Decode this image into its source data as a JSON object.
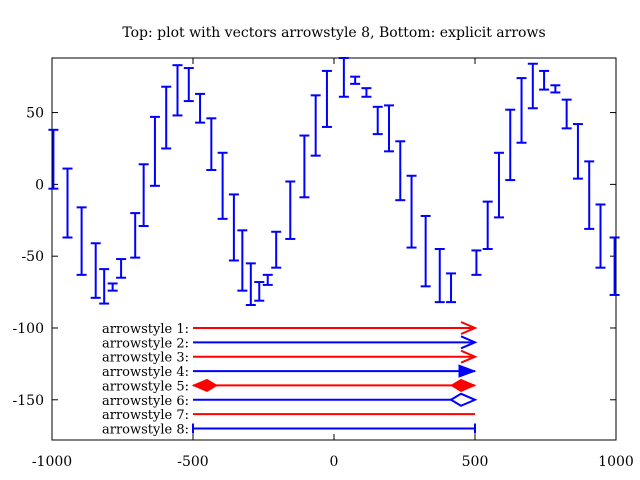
{
  "chart_data": {
    "type": "vector",
    "title": "Top: plot with vectors arrowstyle 8, Bottom: explicit arrows",
    "xlabel": "",
    "ylabel": "",
    "xlim": [
      -1000,
      1000
    ],
    "ylim": [
      -178,
      88
    ],
    "grid": false,
    "xticks": [
      -1000,
      -500,
      0,
      500,
      1000
    ],
    "yticks": [
      50,
      0,
      -50,
      -100,
      -150
    ],
    "xtick_labels": [
      "-1000",
      "-500",
      "0",
      "500",
      "1000"
    ],
    "ytick_labels": [
      "50",
      "0",
      "-50",
      "-100",
      "-150"
    ],
    "vectors": [
      {
        "x": -995,
        "y1": -3,
        "y2": 38
      },
      {
        "x": -945,
        "y1": -37,
        "y2": 11
      },
      {
        "x": -895,
        "y1": -63,
        "y2": -16
      },
      {
        "x": -845,
        "y1": -79,
        "y2": -41
      },
      {
        "x": -815,
        "y1": -83,
        "y2": -59
      },
      {
        "x": -785,
        "y1": -74,
        "y2": -69
      },
      {
        "x": -755,
        "y1": -65,
        "y2": -52
      },
      {
        "x": -705,
        "y1": -51,
        "y2": -20
      },
      {
        "x": -675,
        "y1": -29,
        "y2": 14
      },
      {
        "x": -635,
        "y1": -1,
        "y2": 47
      },
      {
        "x": -595,
        "y1": 25,
        "y2": 68
      },
      {
        "x": -555,
        "y1": 48,
        "y2": 83
      },
      {
        "x": -515,
        "y1": 58,
        "y2": 81
      },
      {
        "x": -475,
        "y1": 43,
        "y2": 63
      },
      {
        "x": -435,
        "y1": 10,
        "y2": 46
      },
      {
        "x": -395,
        "y1": -24,
        "y2": 22
      },
      {
        "x": -355,
        "y1": -53,
        "y2": -7
      },
      {
        "x": -325,
        "y1": -74,
        "y2": -32
      },
      {
        "x": -295,
        "y1": -84,
        "y2": -55
      },
      {
        "x": -265,
        "y1": -81,
        "y2": -68
      },
      {
        "x": -235,
        "y1": -70,
        "y2": -63
      },
      {
        "x": -205,
        "y1": -58,
        "y2": -33
      },
      {
        "x": -155,
        "y1": -38,
        "y2": 2
      },
      {
        "x": -105,
        "y1": -9,
        "y2": 34
      },
      {
        "x": -65,
        "y1": 20,
        "y2": 62
      },
      {
        "x": -25,
        "y1": 40,
        "y2": 79
      },
      {
        "x": 35,
        "y1": 61,
        "y2": 88
      },
      {
        "x": 75,
        "y1": 70,
        "y2": 75
      },
      {
        "x": 115,
        "y1": 61,
        "y2": 67
      },
      {
        "x": 155,
        "y1": 35,
        "y2": 54
      },
      {
        "x": 195,
        "y1": 23,
        "y2": 55
      },
      {
        "x": 235,
        "y1": -11,
        "y2": 30
      },
      {
        "x": 275,
        "y1": -44,
        "y2": 6
      },
      {
        "x": 325,
        "y1": -71,
        "y2": -22
      },
      {
        "x": 375,
        "y1": -82,
        "y2": -45
      },
      {
        "x": 415,
        "y1": -82,
        "y2": -62
      },
      {
        "x": 505,
        "y1": -63,
        "y2": -46
      },
      {
        "x": 545,
        "y1": -45,
        "y2": -12
      },
      {
        "x": 585,
        "y1": -23,
        "y2": 22
      },
      {
        "x": 625,
        "y1": 3,
        "y2": 52
      },
      {
        "x": 665,
        "y1": 29,
        "y2": 74
      },
      {
        "x": 705,
        "y1": 53,
        "y2": 84
      },
      {
        "x": 745,
        "y1": 66,
        "y2": 79
      },
      {
        "x": 785,
        "y1": 64,
        "y2": 69
      },
      {
        "x": 825,
        "y1": 39,
        "y2": 59
      },
      {
        "x": 865,
        "y1": 4,
        "y2": 42
      },
      {
        "x": 905,
        "y1": -31,
        "y2": 16
      },
      {
        "x": 945,
        "y1": -58,
        "y2": -14
      },
      {
        "x": 995,
        "y1": -77,
        "y2": -37
      }
    ],
    "arrow_rows": [
      {
        "label": "arrowstyle 1:",
        "y": -100,
        "x1": -500,
        "x2": 500,
        "color": "#ff0000",
        "head": "open-end"
      },
      {
        "label": "arrowstyle 2:",
        "y": -110,
        "x1": -500,
        "x2": 500,
        "color": "#0000ff",
        "head": "open-end"
      },
      {
        "label": "arrowstyle 3:",
        "y": -120,
        "x1": -500,
        "x2": 500,
        "color": "#ff0000",
        "head": "open-end"
      },
      {
        "label": "arrowstyle 4:",
        "y": -130,
        "x1": -500,
        "x2": 500,
        "color": "#0000ff",
        "head": "filled-end"
      },
      {
        "label": "arrowstyle 5:",
        "y": -140,
        "x1": -500,
        "x2": 500,
        "color": "#ff0000",
        "head": "filled-both"
      },
      {
        "label": "arrowstyle 6:",
        "y": -150,
        "x1": -500,
        "x2": 500,
        "color": "#0000ff",
        "head": "empty-end"
      },
      {
        "label": "arrowstyle 7:",
        "y": -160,
        "x1": -500,
        "x2": 500,
        "color": "#ff0000",
        "head": "none"
      },
      {
        "label": "arrowstyle 8:",
        "y": -170,
        "x1": -500,
        "x2": 500,
        "color": "#0000ff",
        "head": "bar-both"
      }
    ],
    "vector_color": "#0000ff"
  }
}
